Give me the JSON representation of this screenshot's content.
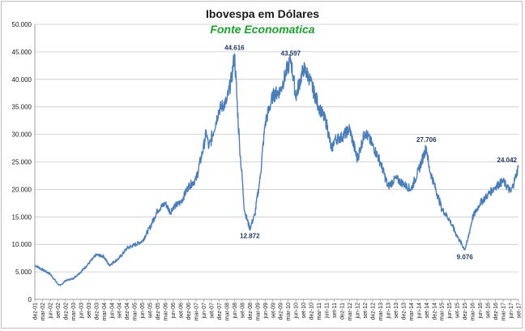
{
  "chart_data": {
    "type": "line",
    "title": "Ibovespa em Dólares",
    "subtitle": "Fonte Economatica",
    "xlabel": "",
    "ylabel": "",
    "ylim": [
      0,
      50000
    ],
    "yticks": [
      0,
      5000,
      10000,
      15000,
      20000,
      25000,
      30000,
      35000,
      40000,
      45000,
      50000
    ],
    "ytick_labels": [
      "0",
      "5.000",
      "10.000",
      "15.000",
      "20.000",
      "25.000",
      "30.000",
      "35.000",
      "40.000",
      "45.000",
      "50.000"
    ],
    "grid": true,
    "line_color": "#4a7ebb",
    "xlim": [
      "2001-12",
      "2017-09"
    ],
    "x_tick_labels": [
      "dez-01",
      "mar-02",
      "jun-02",
      "set-02",
      "dez-02",
      "mar-03",
      "jun-03",
      "set-03",
      "dez-03",
      "mar-04",
      "jun-04",
      "set-04",
      "dez-04",
      "mar-05",
      "jun-05",
      "set-05",
      "dez-05",
      "mar-06",
      "jun-06",
      "set-06",
      "dez-06",
      "mar-07",
      "jun-07",
      "set-07",
      "dez-07",
      "mar-08",
      "jun-08",
      "set-08",
      "dez-08",
      "mar-09",
      "jun-09",
      "set-09",
      "dez-09",
      "mar-10",
      "jun-10",
      "set-10",
      "dez-10",
      "mar-11",
      "jun-11",
      "set-11",
      "dez-11",
      "mar-12",
      "jun-12",
      "set-12",
      "dez-12",
      "mar-13",
      "jun-13",
      "set-13",
      "dez-13",
      "mar-14",
      "jun-14",
      "set-14",
      "dez-14",
      "mar-15",
      "jun-15",
      "set-15",
      "dez-15",
      "mar-16",
      "jun-16",
      "set-16",
      "dez-16",
      "mar-17",
      "jun-17",
      "set-17"
    ],
    "series": [
      {
        "x": [
          "2001-12",
          "2002-03",
          "2002-06",
          "2002-09",
          "2002-10",
          "2002-12",
          "2003-03",
          "2003-06",
          "2003-09",
          "2003-12",
          "2004-03",
          "2004-05",
          "2004-09",
          "2004-12",
          "2005-03",
          "2005-06",
          "2005-09",
          "2005-12",
          "2006-03",
          "2006-05",
          "2006-06",
          "2006-09",
          "2006-12",
          "2007-03",
          "2007-06",
          "2007-07",
          "2007-08",
          "2007-12",
          "2008-03",
          "2008-05",
          "2008-06",
          "2008-08",
          "2008-10",
          "2008-12",
          "2009-02",
          "2009-04",
          "2009-06",
          "2009-09",
          "2009-12",
          "2010-02",
          "2010-04",
          "2010-06",
          "2010-09",
          "2010-11",
          "2011-03",
          "2011-06",
          "2011-08",
          "2011-09",
          "2011-12",
          "2012-03",
          "2012-06",
          "2012-09",
          "2012-12",
          "2013-03",
          "2013-06",
          "2013-09",
          "2013-12",
          "2014-03",
          "2014-06",
          "2014-09",
          "2014-10",
          "2014-12",
          "2015-03",
          "2015-06",
          "2015-09",
          "2015-12",
          "2016-01",
          "2016-03",
          "2016-06",
          "2016-09",
          "2016-12",
          "2017-03",
          "2017-06",
          "2017-08",
          "2017-09"
        ],
        "values": [
          6200,
          5400,
          4600,
          2800,
          2500,
          3400,
          3800,
          5000,
          6500,
          8100,
          7800,
          6200,
          7500,
          9300,
          9900,
          10600,
          13100,
          16200,
          17500,
          15800,
          16800,
          17600,
          20500,
          21800,
          27800,
          30500,
          27500,
          34500,
          36000,
          40500,
          44616,
          28000,
          16000,
          12872,
          15500,
          22000,
          32000,
          37000,
          38000,
          41000,
          43597,
          37000,
          42000,
          40500,
          35000,
          32000,
          27000,
          29000,
          29500,
          31000,
          25500,
          30500,
          28000,
          25000,
          20500,
          22000,
          21000,
          20000,
          23500,
          27706,
          24000,
          21000,
          16500,
          14500,
          11500,
          9076,
          10500,
          14800,
          17500,
          19000,
          20500,
          21500,
          19500,
          22500,
          24042
        ]
      }
    ],
    "annotations": [
      {
        "x": "2008-06",
        "value": 44616,
        "label": "44.616"
      },
      {
        "x": "2008-12",
        "value": 12872,
        "label": "12.872"
      },
      {
        "x": "2010-04",
        "value": 43597,
        "label": "43.597"
      },
      {
        "x": "2014-09",
        "value": 27706,
        "label": "27.706"
      },
      {
        "x": "2015-12",
        "value": 9076,
        "label": "9.076"
      },
      {
        "x": "2017-09",
        "value": 24042,
        "label": "24.042"
      }
    ]
  }
}
